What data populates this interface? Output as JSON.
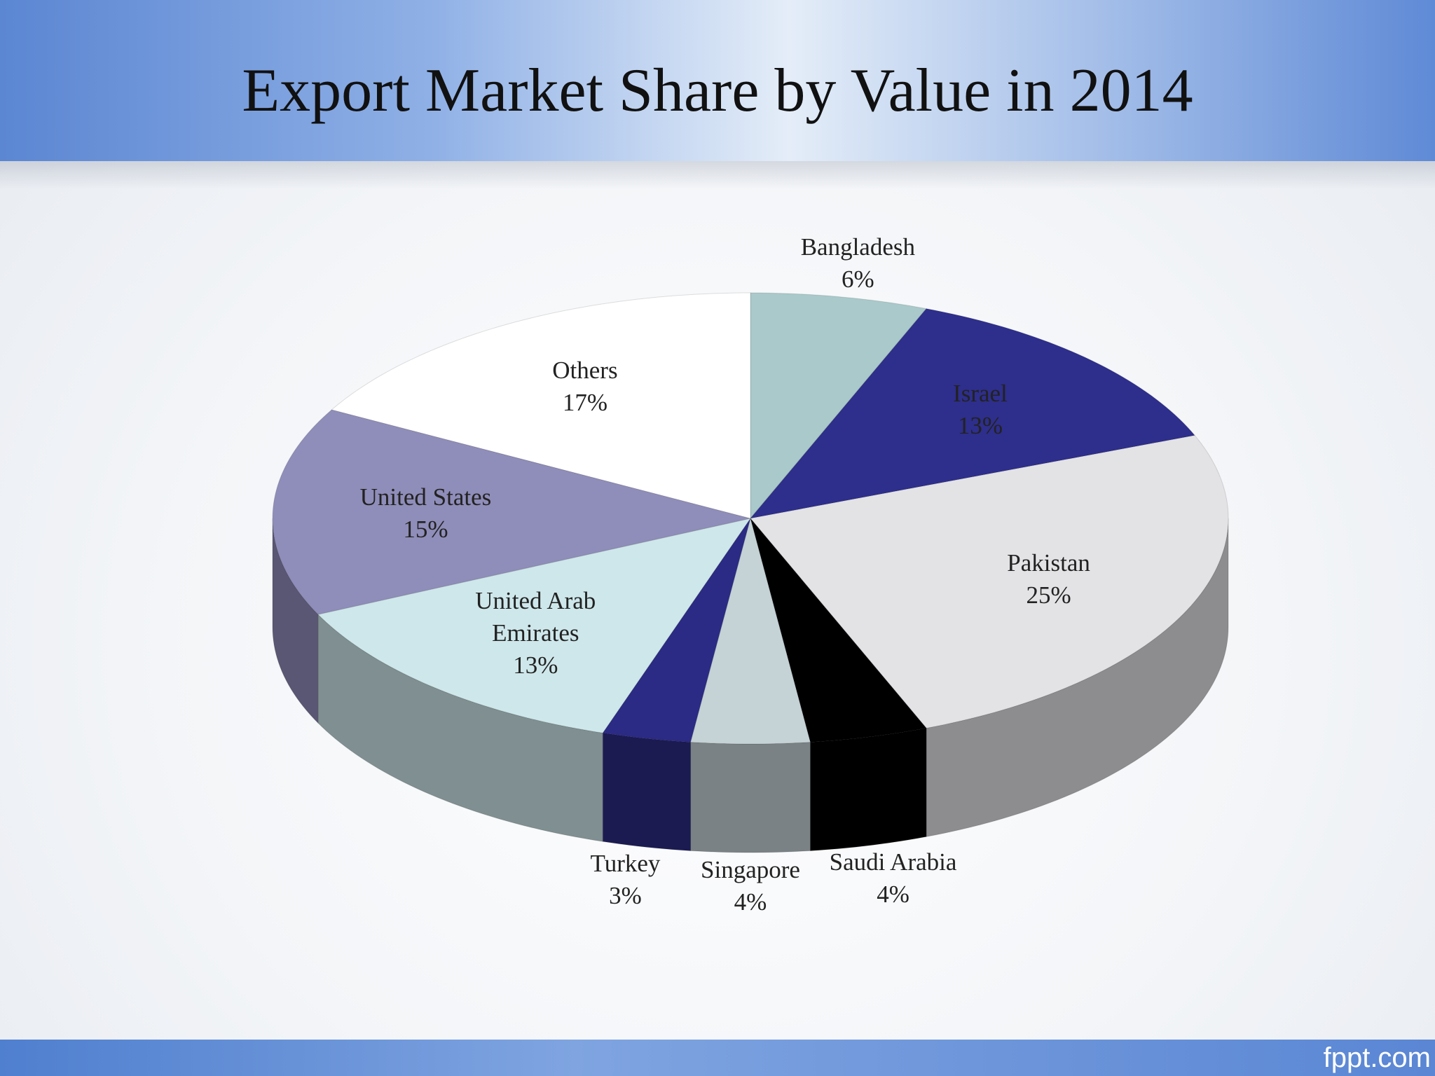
{
  "chart_data": {
    "type": "pie",
    "title": "Export Market Share by Value in 2014",
    "categories": [
      "Bangladesh",
      "Israel",
      "Pakistan",
      "Saudi Arabia",
      "Singapore",
      "Turkey",
      "United Arab Emirates",
      "United States",
      "Others"
    ],
    "values": [
      6,
      13,
      25,
      4,
      4,
      3,
      13,
      15,
      17
    ],
    "value_labels": [
      "6%",
      "13%",
      "25%",
      "4%",
      "4%",
      "3%",
      "13%",
      "15%",
      "17%"
    ],
    "colors": [
      "#a9c9ca",
      "#2e2e8c",
      "#e3e3e6",
      "#000000",
      "#c5d2d6",
      "#2b2b85",
      "#cee7ea",
      "#8f8db9",
      "#ffffff"
    ]
  },
  "footer": "fppt.com"
}
